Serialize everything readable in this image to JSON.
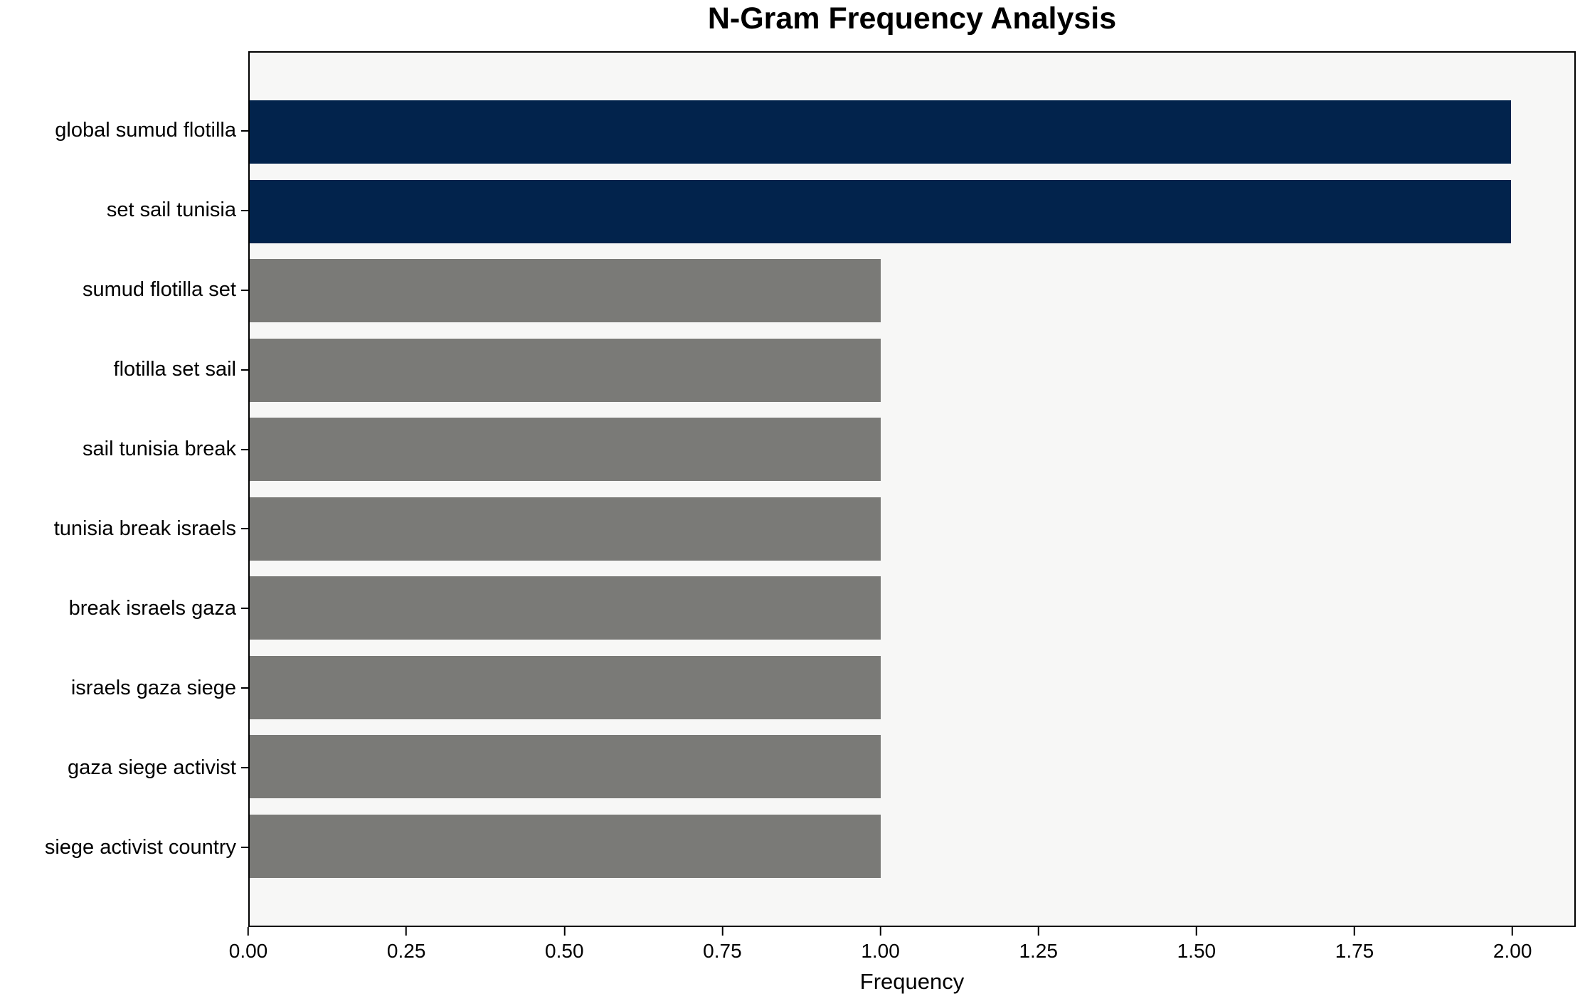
{
  "chart_data": {
    "type": "bar",
    "orientation": "horizontal",
    "title": "N-Gram Frequency Analysis",
    "xlabel": "Frequency",
    "ylabel": "",
    "categories": [
      "global sumud flotilla",
      "set sail tunisia",
      "sumud flotilla set",
      "flotilla set sail",
      "sail tunisia break",
      "tunisia break israels",
      "break israels gaza",
      "israels gaza siege",
      "gaza siege activist",
      "siege activist country"
    ],
    "values": [
      2,
      2,
      1,
      1,
      1,
      1,
      1,
      1,
      1,
      1
    ],
    "bar_colors": [
      "#02234C",
      "#02234C",
      "#7A7A77",
      "#7A7A77",
      "#7A7A77",
      "#7A7A77",
      "#7A7A77",
      "#7A7A77",
      "#7A7A77",
      "#7A7A77"
    ],
    "xlim": [
      0,
      2.1
    ],
    "x_ticks": [
      0,
      0.25,
      0.5,
      0.75,
      1.0,
      1.25,
      1.5,
      1.75,
      2.0
    ],
    "x_tick_labels": [
      "0.00",
      "0.25",
      "0.50",
      "0.75",
      "1.00",
      "1.25",
      "1.50",
      "1.75",
      "2.00"
    ],
    "grid": false,
    "legend": null,
    "colors": {
      "highlight_bar": "#02234C",
      "default_bar": "#7A7A77",
      "plot_background": "#F7F7F6",
      "figure_background": "#FFFFFF",
      "axis": "#000000"
    }
  }
}
